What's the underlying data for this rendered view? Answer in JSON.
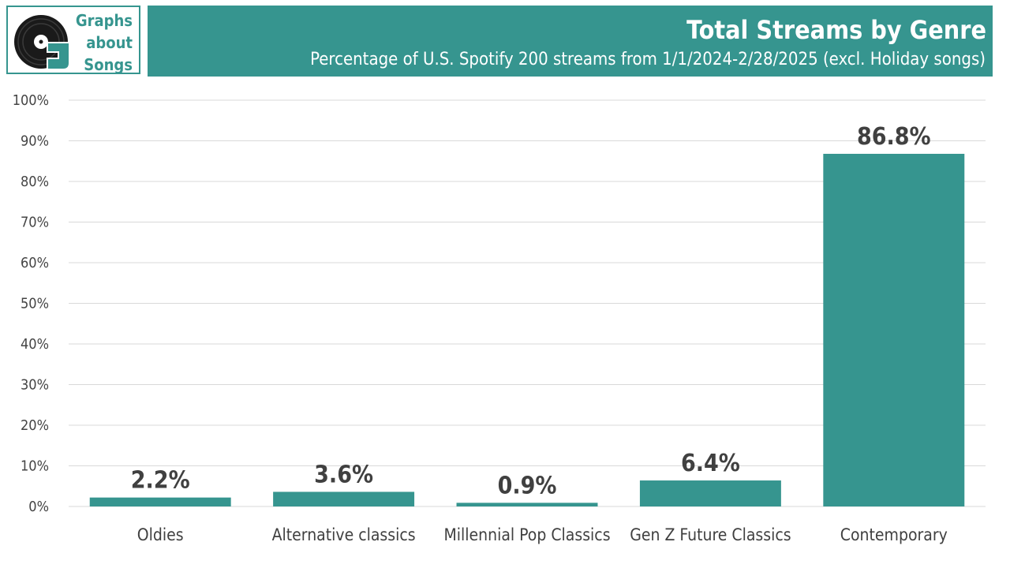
{
  "brand": {
    "logo_lines": [
      "Graphs",
      "about",
      "Songs"
    ],
    "accent_color": "#36958f"
  },
  "chart_data": {
    "type": "bar",
    "title": "Total Streams by Genre",
    "subtitle": "Percentage of U.S. Spotify 200 streams from 1/1/2024-2/28/2025 (excl. Holiday songs)",
    "categories": [
      "Oldies",
      "Alternative classics",
      "Millennial Pop Classics",
      "Gen Z Future Classics",
      "Contemporary"
    ],
    "values": [
      2.2,
      3.6,
      0.9,
      6.4,
      86.8
    ],
    "data_labels": [
      "2.2%",
      "3.6%",
      "0.9%",
      "6.4%",
      "86.8%"
    ],
    "y_ticks": [
      "0%",
      "10%",
      "20%",
      "30%",
      "40%",
      "50%",
      "60%",
      "70%",
      "80%",
      "90%",
      "100%"
    ],
    "ylim": [
      0,
      100
    ],
    "xlabel": "",
    "ylabel": "",
    "grid": true,
    "bar_color": "#36958f",
    "grid_color": "#d9d9d9"
  }
}
